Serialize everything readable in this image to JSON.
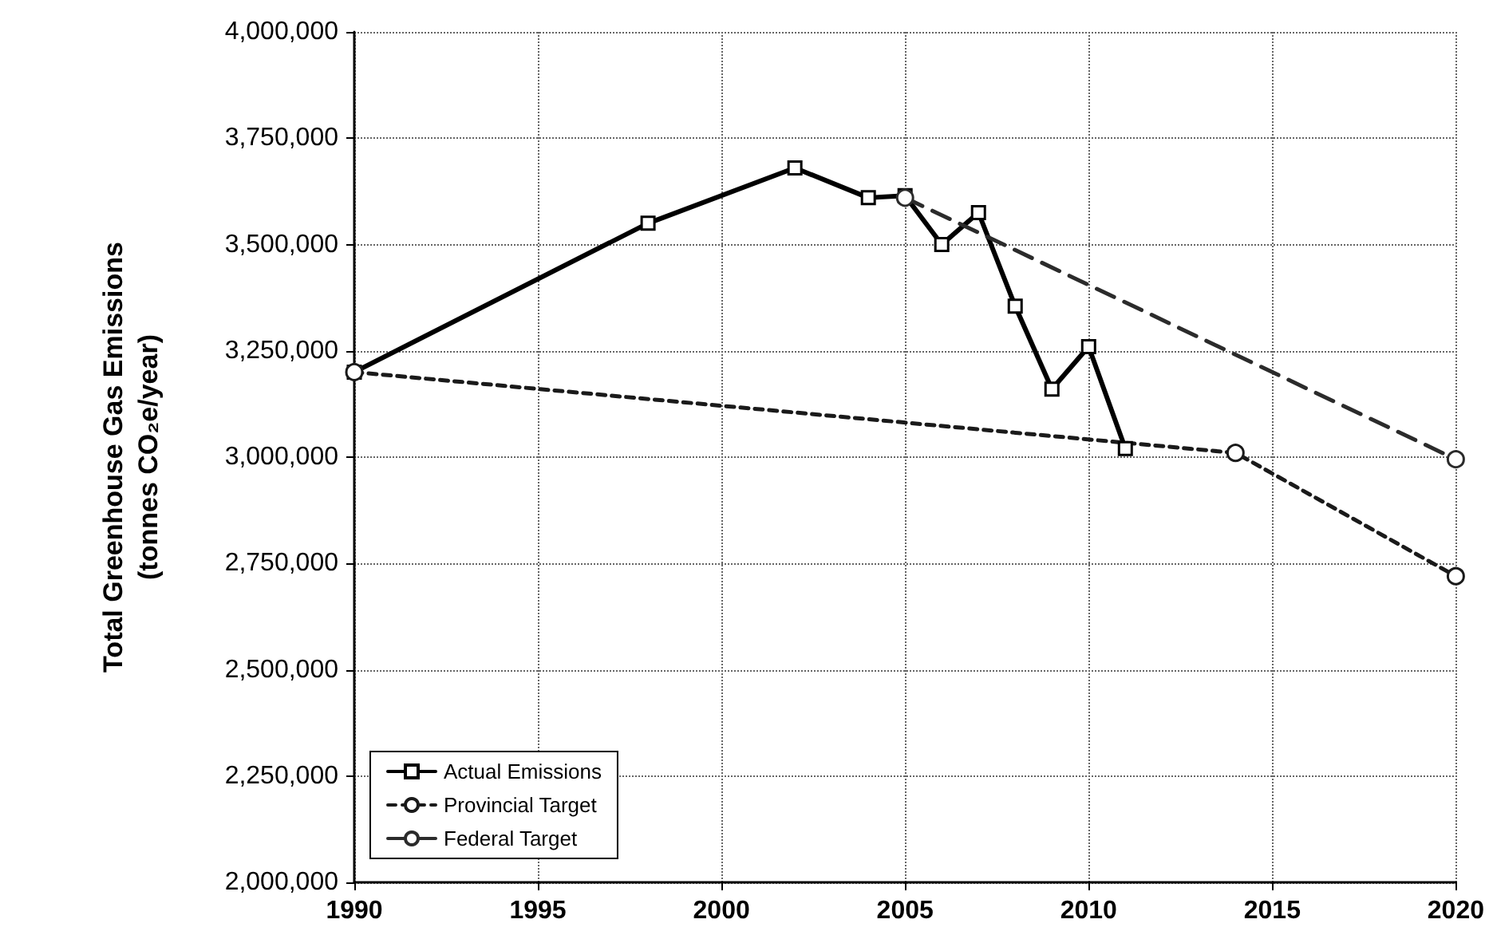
{
  "chart_data": {
    "type": "line",
    "ylabel": "Total Greenhouse Gas Emissions\n(tonnes CO₂e/year)",
    "xlim": [
      1990,
      2020
    ],
    "xticks": [
      1990,
      1995,
      2000,
      2005,
      2010,
      2015,
      2020
    ],
    "ylim": [
      2000000,
      4000000
    ],
    "yticks": [
      {
        "value": 2000000,
        "label": "2,000,000"
      },
      {
        "value": 2250000,
        "label": "2,250,000"
      },
      {
        "value": 2500000,
        "label": "2,500,000"
      },
      {
        "value": 2750000,
        "label": "2,750,000"
      },
      {
        "value": 3000000,
        "label": "3,000,000"
      },
      {
        "value": 3250000,
        "label": "3,250,000"
      },
      {
        "value": 3500000,
        "label": "3,500,000"
      },
      {
        "value": 3750000,
        "label": "3,750,000"
      },
      {
        "value": 4000000,
        "label": "4,000,000"
      }
    ],
    "grid": true,
    "legend": "bottom left",
    "series": [
      {
        "name": "Actual Emissions",
        "color": "#000000",
        "marker": "square",
        "line_style": "solid",
        "x": [
          1990,
          1998,
          2002,
          2004,
          2005,
          2006,
          2007,
          2008,
          2009,
          2010,
          2011
        ],
        "values": [
          3200000,
          3550000,
          3680000,
          3610000,
          3615000,
          3500000,
          3575000,
          3355000,
          3160000,
          3260000,
          3020000
        ]
      },
      {
        "name": "Provincial Target",
        "color": "#1a1a1a",
        "marker": "circle",
        "line_style": "dotted",
        "x": [
          1990,
          2014,
          2020
        ],
        "values": [
          3200000,
          3010000,
          2720000
        ]
      },
      {
        "name": "Federal Target",
        "color": "#2b2b2b",
        "marker": "circle",
        "line_style": "dashed",
        "x": [
          2005,
          2020
        ],
        "values": [
          3610000,
          2995000
        ]
      }
    ]
  }
}
